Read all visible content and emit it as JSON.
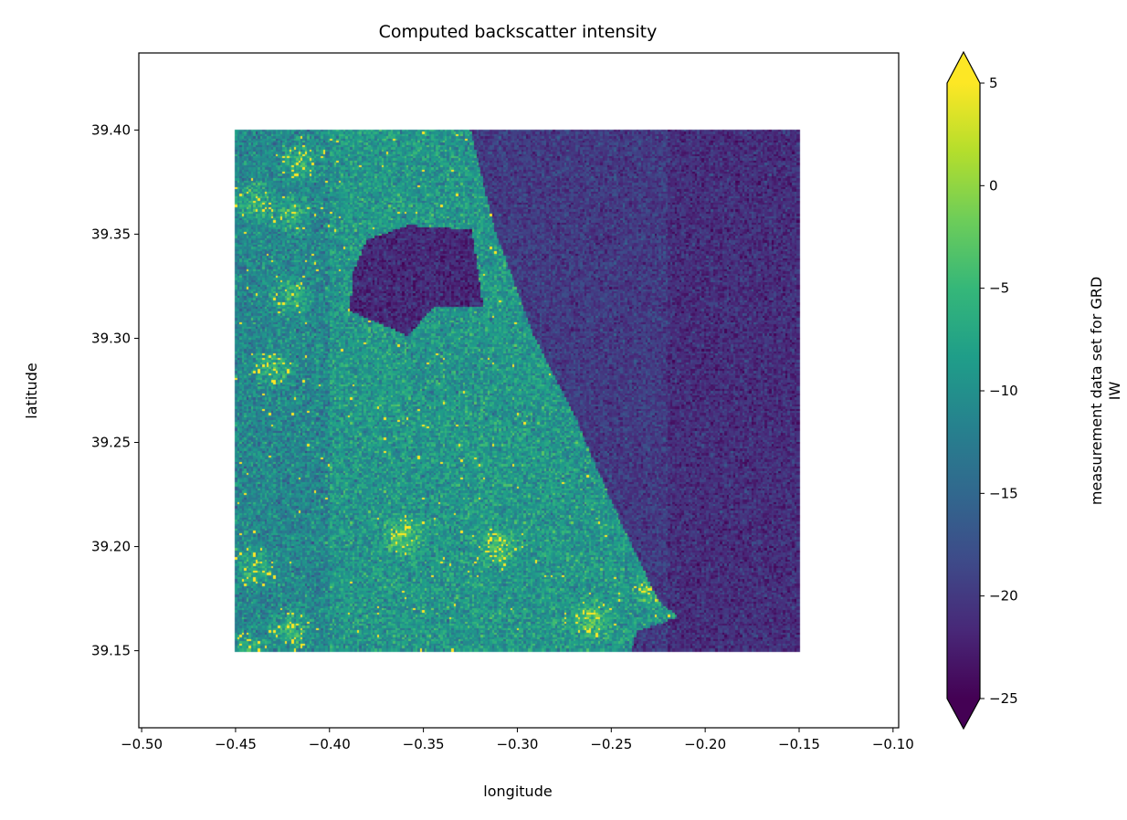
{
  "chart_data": {
    "type": "heatmap",
    "title": "Computed backscatter intensity",
    "xlabel": "longitude",
    "ylabel": "latitude",
    "xlim": [
      -0.5015,
      -0.097
    ],
    "ylim": [
      39.113,
      39.437
    ],
    "data_extent": {
      "lon": [
        -0.45,
        -0.15
      ],
      "lat": [
        39.15,
        39.4
      ]
    },
    "xticks": [
      -0.5,
      -0.45,
      -0.4,
      -0.35,
      -0.3,
      -0.25,
      -0.2,
      -0.15,
      -0.1
    ],
    "xtick_labels": [
      "−0.50",
      "−0.45",
      "−0.40",
      "−0.35",
      "−0.30",
      "−0.25",
      "−0.20",
      "−0.15",
      "−0.10"
    ],
    "yticks": [
      39.15,
      39.2,
      39.25,
      39.3,
      39.35,
      39.4
    ],
    "ytick_labels": [
      "39.15",
      "39.20",
      "39.25",
      "39.30",
      "39.35",
      "39.40"
    ],
    "colormap": "viridis",
    "colorbar": {
      "label_line1": "measurement data set for GRD",
      "label_line2": "IW",
      "range": [
        -25,
        5
      ],
      "extend": "both",
      "ticks": [
        5,
        0,
        -5,
        -10,
        -15,
        -20,
        -25
      ],
      "tick_labels": [
        "5",
        "0",
        "−5",
        "−10",
        "−15",
        "−20",
        "−25"
      ]
    },
    "regions": {
      "land_mean_value": -9,
      "water_mean_value": -21,
      "coastline": [
        [
          -0.325,
          39.4
        ],
        [
          -0.311,
          39.35
        ],
        [
          -0.291,
          39.301
        ],
        [
          -0.271,
          39.266
        ],
        [
          -0.25,
          39.222
        ],
        [
          -0.225,
          39.174
        ],
        [
          -0.214,
          39.166
        ],
        [
          -0.236,
          39.159
        ],
        [
          -0.239,
          39.15
        ]
      ],
      "lake": [
        [
          -0.38,
          39.347
        ],
        [
          -0.358,
          39.354
        ],
        [
          -0.324,
          39.352
        ],
        [
          -0.318,
          39.315
        ],
        [
          -0.344,
          39.315
        ],
        [
          -0.358,
          39.301
        ],
        [
          -0.389,
          39.313
        ],
        [
          -0.387,
          39.332
        ]
      ],
      "bright_patches": [
        [
          -0.415,
          39.385
        ],
        [
          -0.44,
          39.365
        ],
        [
          -0.42,
          39.36
        ],
        [
          -0.42,
          39.32
        ],
        [
          -0.43,
          39.285
        ],
        [
          -0.44,
          39.19
        ],
        [
          -0.42,
          39.16
        ],
        [
          -0.36,
          39.205
        ],
        [
          -0.31,
          39.2
        ],
        [
          -0.26,
          39.165
        ],
        [
          -0.225,
          39.18
        ],
        [
          -0.445,
          39.15
        ]
      ]
    }
  }
}
